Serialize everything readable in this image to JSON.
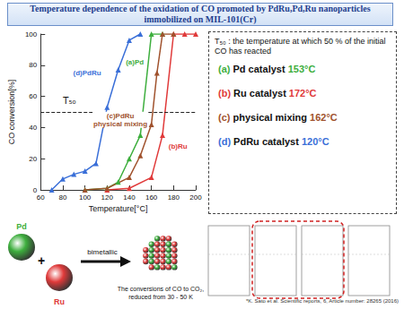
{
  "header": {
    "title": "Temperature dependence of the oxidation of CO promoted by PdRu,Pd,Ru nanoparticles immobilized on MIL-101(Cr)"
  },
  "chart_data": {
    "type": "line",
    "x_label": "Temperature[°C]",
    "y_label": "CO conversion[%]",
    "xlim": [
      60,
      200
    ],
    "xticks": [
      60,
      80,
      100,
      120,
      140,
      160,
      180,
      200
    ],
    "ylim": [
      0,
      100
    ],
    "yticks": [
      0,
      20,
      40,
      60,
      80,
      100
    ],
    "grid": false,
    "marker": "triangle",
    "reference_line": {
      "value": 50,
      "label": "T₅₀",
      "line_style": "dashed"
    },
    "series": [
      {
        "name": "(a)Pd",
        "color": "#3dae3d",
        "x": [
          100,
          120,
          130,
          140,
          150,
          160,
          170
        ],
        "values": [
          0,
          1,
          5,
          20,
          35,
          100,
          100
        ]
      },
      {
        "name": "(b)Ru",
        "color": "#e03a3a",
        "x": [
          120,
          140,
          160,
          170,
          180,
          190,
          200
        ],
        "values": [
          0,
          1,
          8,
          35,
          100,
          100,
          100
        ]
      },
      {
        "name": "(c)PdRu physical mixing",
        "color": "#a0522d",
        "x": [
          100,
          120,
          140,
          150,
          160,
          165,
          170,
          180
        ],
        "values": [
          0,
          1,
          8,
          22,
          42,
          75,
          100,
          100
        ]
      },
      {
        "name": "(d)PdRu",
        "color": "#3a6fd8",
        "x": [
          70,
          80,
          90,
          100,
          110,
          120,
          130,
          140,
          150
        ],
        "values": [
          0,
          7,
          10,
          12,
          17,
          53,
          77,
          96,
          100
        ]
      }
    ]
  },
  "t50_box": {
    "definition": "T₅₀ : the temperature at which 50 % of the initial CO has reacted",
    "items": [
      {
        "letter": "(a)",
        "text": "Pd catalyst",
        "value": "153°C",
        "color": "#3dae3d"
      },
      {
        "letter": "(b)",
        "text": "Ru catalyst",
        "value": "172°C",
        "color": "#e03a3a"
      },
      {
        "letter": "(c)",
        "text": "physical mixing",
        "value": "162°C",
        "color": "#a0522d"
      },
      {
        "letter": "(d)",
        "text": "PdRu catalyst",
        "value": "120°C",
        "color": "#3a6fd8"
      }
    ]
  },
  "illustration": {
    "particles": [
      {
        "label": "Pd",
        "color": "#3dae3d"
      },
      {
        "label": "Ru",
        "color": "#e03a3a"
      }
    ],
    "operator": "+",
    "arrow_label": "bimetallic",
    "caption": "The conversions of CO to CO₂, reduced from 30 - 50 K"
  },
  "citation": "*K. Sato et al. Scientific reports, 6, Article number: 28265 (2016)"
}
